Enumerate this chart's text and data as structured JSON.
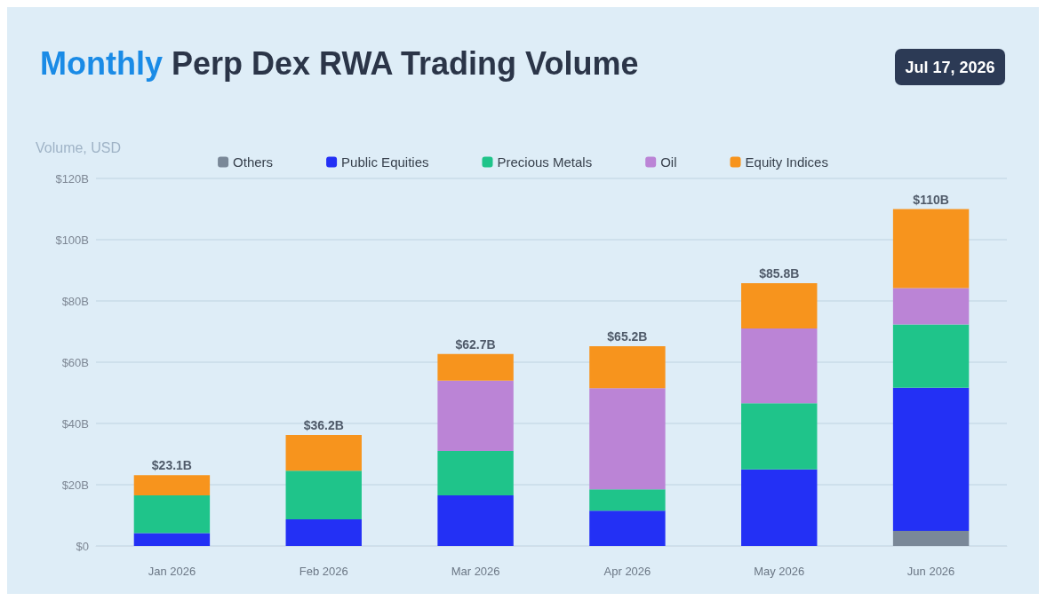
{
  "chart_data": {
    "type": "bar",
    "stacked": true,
    "title": "Monthly Perp Dex RWA Trading Volume",
    "ylabel": "Volume, USD",
    "annotations": [
      "Jul 17, 2026"
    ],
    "categories": [
      "Jan 2026",
      "Feb 2026",
      "Mar 2026",
      "Apr 2026",
      "May 2026",
      "Jun 2026"
    ],
    "series": [
      {
        "name": "Others",
        "color": "#7a8898",
        "values": [
          0,
          0,
          0,
          0,
          0,
          4.9
        ]
      },
      {
        "name": "Public Equities",
        "color": "#2330f5",
        "values": [
          4.2,
          8.7,
          16.5,
          11.5,
          25.0,
          46.8
        ]
      },
      {
        "name": "Precious Metals",
        "color": "#1fc48a",
        "values": [
          12.3,
          15.9,
          14.5,
          7.0,
          21.6,
          20.6
        ]
      },
      {
        "name": "Oil",
        "color": "#bb84d6",
        "values": [
          0,
          0,
          23.0,
          33.0,
          24.4,
          11.9
        ]
      },
      {
        "name": "Equity Indices",
        "color": "#f7941d",
        "values": [
          6.6,
          11.6,
          8.7,
          13.7,
          14.8,
          25.8
        ]
      }
    ],
    "totals": [
      "$23.1B",
      "$36.2B",
      "$62.7B",
      "$65.2B",
      "$85.8B",
      "$110B"
    ],
    "ylim": [
      0,
      120
    ],
    "yticks": [
      {
        "value": 0,
        "label": "$0"
      },
      {
        "value": 20,
        "label": "$20B"
      },
      {
        "value": 40,
        "label": "$40B"
      },
      {
        "value": 60,
        "label": "$60B"
      },
      {
        "value": 80,
        "label": "$80B"
      },
      {
        "value": 100,
        "label": "$100B"
      },
      {
        "value": 120,
        "label": "$120B"
      }
    ],
    "grid": "y",
    "legend": "top"
  }
}
